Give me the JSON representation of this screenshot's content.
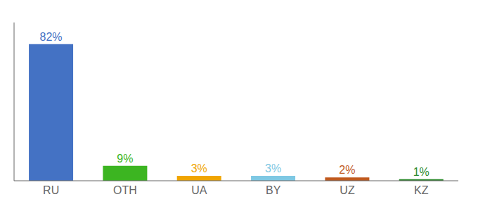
{
  "chart_data": {
    "type": "bar",
    "categories": [
      "RU",
      "OTH",
      "UA",
      "BY",
      "UZ",
      "KZ"
    ],
    "values": [
      82,
      9,
      3,
      3,
      2,
      1
    ],
    "value_labels": [
      "82%",
      "9%",
      "3%",
      "3%",
      "2%",
      "1%"
    ],
    "colors": [
      "#4472c4",
      "#3cb521",
      "#f0a500",
      "#7ec8e3",
      "#c05a1f",
      "#2d8a2d"
    ],
    "ylim": [
      0,
      95
    ],
    "grid": false,
    "tick_labels": "x"
  }
}
